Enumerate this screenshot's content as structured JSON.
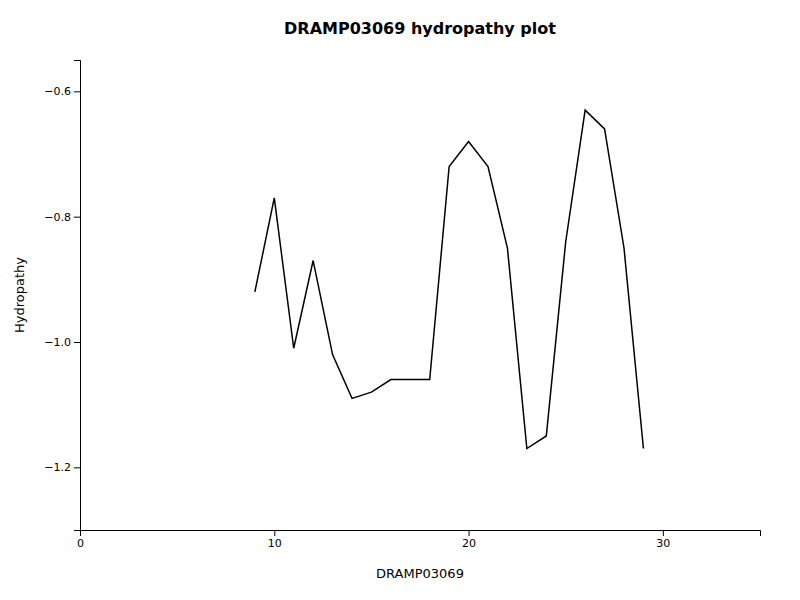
{
  "chart_data": {
    "type": "line",
    "title": "DRAMP03069 hydropathy plot",
    "xlabel": "DRAMP03069",
    "ylabel": "Hydropathy",
    "color": "#000000",
    "xlim": [
      0,
      35
    ],
    "ylim": [
      -1.3,
      -0.55
    ],
    "xticks": [
      0,
      10,
      20,
      30
    ],
    "yticks": [
      {
        "value": -1.2,
        "label": "−1.2"
      },
      {
        "value": -1.0,
        "label": "−1.0"
      },
      {
        "value": -0.8,
        "label": "−0.8"
      },
      {
        "value": -0.6,
        "label": "−0.6"
      }
    ],
    "x": [
      9,
      10,
      11,
      12,
      13,
      14,
      15,
      16,
      17,
      18,
      19,
      20,
      21,
      22,
      23,
      24,
      25,
      26,
      27,
      28,
      29
    ],
    "values": [
      -0.92,
      -0.77,
      -1.01,
      -0.87,
      -1.02,
      -1.09,
      -1.08,
      -1.06,
      -1.06,
      -1.06,
      -0.72,
      -0.68,
      -0.72,
      -0.85,
      -1.17,
      -1.15,
      -0.84,
      -0.63,
      -0.66,
      -0.85,
      -1.17
    ]
  }
}
